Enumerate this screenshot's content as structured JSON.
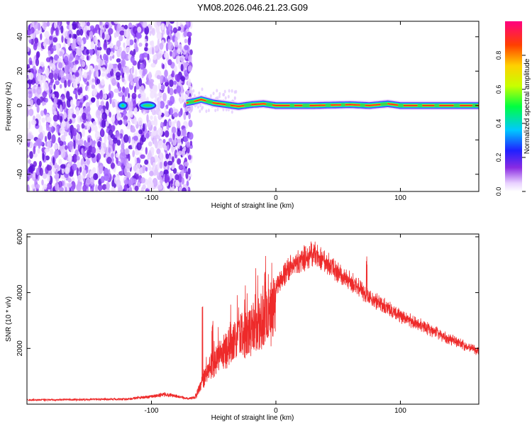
{
  "title": "YM08.2026.046.21.23.G09",
  "chart_data": [
    {
      "type": "heatmap",
      "xlabel": "Height of straight line (km)",
      "ylabel": "Frequency (Hz)",
      "xlim": [
        -200,
        163
      ],
      "ylim": [
        -50,
        49
      ],
      "x_ticks": [
        -100,
        0,
        100
      ],
      "x_tick_labels": [
        "-100",
        "0",
        "100"
      ],
      "y_ticks": [
        -40,
        -20,
        0,
        20,
        40
      ],
      "y_tick_labels": [
        "-40",
        "-20",
        "0",
        "20",
        "40"
      ],
      "colorbar": {
        "label": "Normalized spectral amplitude",
        "range": [
          0,
          1
        ],
        "ticks": [
          0,
          0.2,
          0.4,
          0.6,
          0.8
        ],
        "tick_labels": [
          "0.0",
          "0.2",
          "0.4",
          "0.6",
          "0.8"
        ]
      },
      "regions": [
        {
          "kind": "noise",
          "x": [
            -200,
            -72
          ],
          "y": [
            -50,
            49
          ],
          "amplitude": [
            0.05,
            0.3
          ]
        },
        {
          "kind": "blob",
          "x": -123,
          "y": 0,
          "amplitude": 0.4
        },
        {
          "kind": "blob",
          "x": -103,
          "y": 0,
          "amplitude": 0.45
        },
        {
          "kind": "band",
          "x": [
            -72,
            163
          ],
          "y": 0,
          "amplitude": 1.0
        }
      ],
      "band_profile": [
        {
          "x": -72,
          "y": 1.5
        },
        {
          "x": -65,
          "y": 2.5
        },
        {
          "x": -60,
          "y": 3.5
        },
        {
          "x": -55,
          "y": 2.5
        },
        {
          "x": -50,
          "y": 1.5
        },
        {
          "x": -40,
          "y": 0.5
        },
        {
          "x": -30,
          "y": -0.5
        },
        {
          "x": -20,
          "y": 0.5
        },
        {
          "x": -10,
          "y": 1
        },
        {
          "x": 0,
          "y": 0
        },
        {
          "x": 30,
          "y": 0
        },
        {
          "x": 60,
          "y": 0.5
        },
        {
          "x": 75,
          "y": 0
        },
        {
          "x": 90,
          "y": 1
        },
        {
          "x": 100,
          "y": 0
        },
        {
          "x": 163,
          "y": 0
        }
      ]
    },
    {
      "type": "line",
      "xlabel": "Height of straight line (km)",
      "ylabel": "SNR (10 * v/v)",
      "xlim": [
        -200,
        163
      ],
      "ylim": [
        0,
        6100
      ],
      "x_ticks": [
        -100,
        0,
        100
      ],
      "x_tick_labels": [
        "-100",
        "0",
        "100"
      ],
      "y_ticks": [
        2000,
        4000,
        6000
      ],
      "y_tick_labels": [
        "2000",
        "4000",
        "6000"
      ],
      "series": [
        {
          "color": "#ee2a2a",
          "envelope": [
            {
              "x": -200,
              "y": 180
            },
            {
              "x": -120,
              "y": 220
            },
            {
              "x": -100,
              "y": 330
            },
            {
              "x": -90,
              "y": 420
            },
            {
              "x": -85,
              "y": 400
            },
            {
              "x": -70,
              "y": 240
            },
            {
              "x": -65,
              "y": 300
            },
            {
              "x": -60,
              "y": 1000
            },
            {
              "x": -55,
              "y": 1500
            },
            {
              "x": -50,
              "y": 2000
            },
            {
              "x": -40,
              "y": 2600
            },
            {
              "x": -30,
              "y": 3150
            },
            {
              "x": -20,
              "y": 3600
            },
            {
              "x": -10,
              "y": 4000
            },
            {
              "x": 0,
              "y": 4500
            },
            {
              "x": 10,
              "y": 5100
            },
            {
              "x": 20,
              "y": 5500
            },
            {
              "x": 30,
              "y": 5750
            },
            {
              "x": 40,
              "y": 5400
            },
            {
              "x": 50,
              "y": 5000
            },
            {
              "x": 60,
              "y": 4600
            },
            {
              "x": 70,
              "y": 4250
            },
            {
              "x": 80,
              "y": 3900
            },
            {
              "x": 100,
              "y": 3350
            },
            {
              "x": 120,
              "y": 2900
            },
            {
              "x": 140,
              "y": 2450
            },
            {
              "x": 163,
              "y": 2000
            }
          ],
          "spikes": [
            {
              "x": -59,
              "y": 3700
            },
            {
              "x": -51,
              "y": 3050
            },
            {
              "x": -30,
              "y": 3200
            },
            {
              "x": -8,
              "y": 4500
            },
            {
              "x": 73,
              "y": 5350
            }
          ]
        }
      ]
    }
  ]
}
